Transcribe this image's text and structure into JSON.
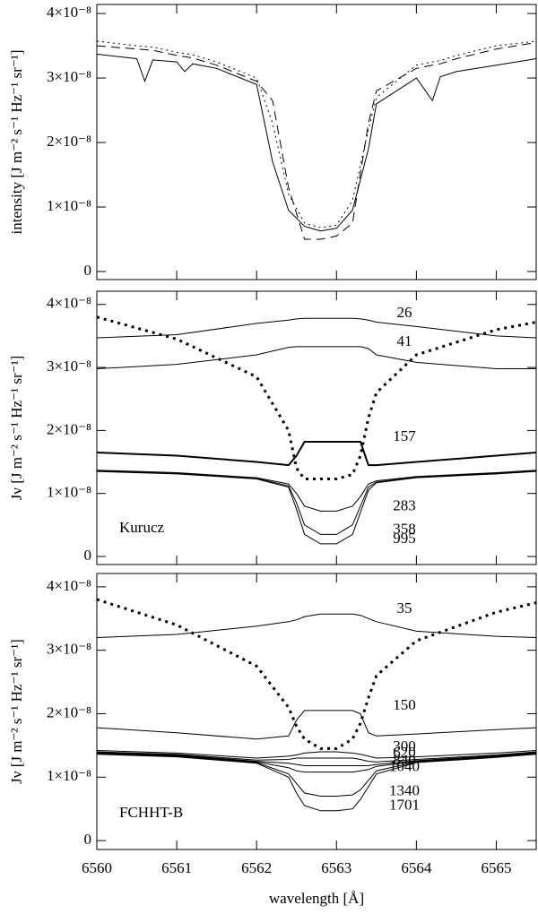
{
  "chart_data": [
    {
      "type": "line",
      "ylabel": "intensity  [J m⁻² s⁻¹ Hz⁻¹ sr⁻¹]",
      "x": [
        6560,
        6560.5,
        6560.6,
        6560.7,
        6561,
        6561.1,
        6561.2,
        6561.5,
        6562,
        6562.2,
        6562.4,
        6562.6,
        6562.8,
        6563,
        6563.2,
        6563.4,
        6563.5,
        6564,
        6564.2,
        6564.3,
        6564.5,
        6565,
        6565.5
      ],
      "xlim": [
        6560,
        6565.5
      ],
      "xticks": [
        6560,
        6561,
        6562,
        6563,
        6564,
        6565
      ],
      "ylim": [
        -1.25e-09,
        4.14e-08
      ],
      "yticks": [
        0,
        {
          "value": 1e-08,
          "label": "1×10⁻⁸"
        },
        {
          "value": 2e-08,
          "label": "2×10⁻⁸"
        },
        {
          "value": 3e-08,
          "label": "3×10⁻⁸"
        },
        {
          "value": 4e-08,
          "label": "4×10⁻⁸"
        }
      ],
      "series": [
        {
          "color": "#000000",
          "dash": "solid",
          "values": [
            3.37e-08,
            3.3e-08,
            2.95e-08,
            3.28e-08,
            3.25e-08,
            3.1e-08,
            3.22e-08,
            3.15e-08,
            2.9e-08,
            1.7e-08,
            9.5e-09,
            7e-09,
            6.3e-09,
            6.7e-09,
            9.5e-09,
            1.9e-08,
            2.6e-08,
            3e-08,
            2.65e-08,
            3.02e-08,
            3.1e-08,
            3.2e-08,
            3.3e-08
          ]
        },
        {
          "color": "#000000",
          "dash": "dashed",
          "values": [
            3.5e-08,
            3.45e-08,
            3.44e-08,
            3.43e-08,
            3.35e-08,
            3.33e-08,
            3.31e-08,
            3.2e-08,
            2.95e-08,
            2.65e-08,
            1.3e-08,
            5e-09,
            5e-09,
            5.5e-09,
            7.5e-09,
            2.3e-08,
            2.8e-08,
            3.15e-08,
            3.2e-08,
            3.22e-08,
            3.3e-08,
            3.45e-08,
            3.55e-08
          ]
        },
        {
          "color": "#000000",
          "dash": "dotted",
          "values": [
            3.57e-08,
            3.5e-08,
            3.49e-08,
            3.48e-08,
            3.4e-08,
            3.38e-08,
            3.36e-08,
            3.25e-08,
            3e-08,
            2.3e-08,
            1.2e-08,
            7.5e-09,
            6.8e-09,
            7.2e-09,
            1.1e-08,
            2.2e-08,
            2.7e-08,
            3.2e-08,
            3.25e-08,
            3.27e-08,
            3.35e-08,
            3.5e-08,
            3.57e-08
          ]
        }
      ]
    },
    {
      "type": "line",
      "ylabel": "Jν  [J m⁻² s⁻¹ Hz⁻¹ sr⁻¹]",
      "annotation": "Kurucz",
      "x": [
        6560,
        6561,
        6562,
        6562.4,
        6562.5,
        6562.6,
        6562.8,
        6563,
        6563.2,
        6563.3,
        6563.4,
        6563.5,
        6564,
        6565,
        6565.5
      ],
      "xlim": [
        6560,
        6565.5
      ],
      "xticks": [
        6560,
        6561,
        6562,
        6563,
        6564,
        6565
      ],
      "ylim": [
        -1.28e-09,
        4.21e-08
      ],
      "yticks": [
        0,
        {
          "value": 1e-08,
          "label": "1×10⁻⁸"
        },
        {
          "value": 2e-08,
          "label": "2×10⁻⁸"
        },
        {
          "value": 3e-08,
          "label": "3×10⁻⁸"
        },
        {
          "value": 4e-08,
          "label": "4×10⁻⁸"
        }
      ],
      "series": [
        {
          "color": "#000000",
          "dash": "dotted",
          "linewidth": 3,
          "values": [
            3.8e-08,
            3.45e-08,
            2.85e-08,
            2e-08,
            1.4e-08,
            1.23e-08,
            1.23e-08,
            1.23e-08,
            1.3e-08,
            1.6e-08,
            2.2e-08,
            2.6e-08,
            3.2e-08,
            3.6e-08,
            3.72e-08
          ]
        },
        {
          "name": "26",
          "color": "#000000",
          "dash": "solid",
          "values": [
            3.47e-08,
            3.52e-08,
            3.7e-08,
            3.75e-08,
            3.77e-08,
            3.78e-08,
            3.78e-08,
            3.78e-08,
            3.78e-08,
            3.77e-08,
            3.75e-08,
            3.72e-08,
            3.65e-08,
            3.5e-08,
            3.47e-08
          ]
        },
        {
          "name": "41",
          "color": "#000000",
          "dash": "solid",
          "values": [
            2.98e-08,
            3.05e-08,
            3.2e-08,
            3.32e-08,
            3.33e-08,
            3.33e-08,
            3.33e-08,
            3.33e-08,
            3.33e-08,
            3.33e-08,
            3.3e-08,
            3.2e-08,
            3.08e-08,
            2.98e-08,
            2.98e-08
          ]
        },
        {
          "name": "157",
          "color": "#000000",
          "dash": "solid",
          "linewidth": 2,
          "values": [
            1.65e-08,
            1.6e-08,
            1.5e-08,
            1.45e-08,
            1.6e-08,
            1.82e-08,
            1.82e-08,
            1.82e-08,
            1.82e-08,
            1.82e-08,
            1.45e-08,
            1.45e-08,
            1.5e-08,
            1.6e-08,
            1.65e-08
          ]
        },
        {
          "name": "283",
          "color": "#000000",
          "dash": "solid",
          "values": [
            1.37e-08,
            1.33e-08,
            1.25e-08,
            1.15e-08,
            1e-08,
            8e-09,
            7.2e-09,
            7.2e-09,
            8e-09,
            9.5e-09,
            1.15e-08,
            1.2e-08,
            1.27e-08,
            1.33e-08,
            1.37e-08
          ]
        },
        {
          "name": "358",
          "color": "#000000",
          "dash": "solid",
          "values": [
            1.36e-08,
            1.32e-08,
            1.24e-08,
            1.12e-08,
            8.5e-09,
            5e-09,
            3.5e-09,
            3.5e-09,
            5e-09,
            8e-09,
            1.1e-08,
            1.18e-08,
            1.26e-08,
            1.32e-08,
            1.36e-08
          ]
        },
        {
          "name": "995",
          "color": "#000000",
          "dash": "solid",
          "values": [
            1.35e-08,
            1.31e-08,
            1.23e-08,
            1.1e-08,
            7.5e-09,
            3.5e-09,
            2e-09,
            2e-09,
            3.5e-09,
            7e-09,
            1.05e-08,
            1.17e-08,
            1.25e-08,
            1.31e-08,
            1.35e-08
          ]
        }
      ]
    },
    {
      "type": "line",
      "ylabel": "Jν  [J m⁻² s⁻¹ Hz⁻¹ sr⁻¹]",
      "annotation": "FCHHT-B",
      "xlabel": "wavelength [Å]",
      "x": [
        6560,
        6561,
        6562,
        6562.4,
        6562.5,
        6562.6,
        6562.8,
        6563,
        6563.2,
        6563.3,
        6563.4,
        6563.5,
        6564,
        6565,
        6565.5
      ],
      "xlim": [
        6560,
        6565.5
      ],
      "xticks": [
        6560,
        6561,
        6562,
        6563,
        6564,
        6565
      ],
      "ylim": [
        -1.4e-09,
        4.21e-08
      ],
      "yticks": [
        0,
        {
          "value": 1e-08,
          "label": "1×10⁻⁸"
        },
        {
          "value": 2e-08,
          "label": "2×10⁻⁸"
        },
        {
          "value": 3e-08,
          "label": "3×10⁻⁸"
        },
        {
          "value": 4e-08,
          "label": "4×10⁻⁸"
        }
      ],
      "series": [
        {
          "color": "#000000",
          "dash": "dotted",
          "linewidth": 3,
          "values": [
            3.8e-08,
            3.4e-08,
            2.75e-08,
            2.1e-08,
            1.8e-08,
            1.6e-08,
            1.45e-08,
            1.45e-08,
            1.6e-08,
            1.85e-08,
            2.25e-08,
            2.6e-08,
            3.15e-08,
            3.6e-08,
            3.75e-08
          ]
        },
        {
          "name": "35",
          "color": "#000000",
          "dash": "solid",
          "values": [
            3.2e-08,
            3.25e-08,
            3.38e-08,
            3.45e-08,
            3.48e-08,
            3.53e-08,
            3.57e-08,
            3.57e-08,
            3.57e-08,
            3.55e-08,
            3.5e-08,
            3.45e-08,
            3.3e-08,
            3.22e-08,
            3.2e-08
          ]
        },
        {
          "name": "150",
          "color": "#000000",
          "dash": "solid",
          "values": [
            1.78e-08,
            1.7e-08,
            1.6e-08,
            1.65e-08,
            1.9e-08,
            2.05e-08,
            2.05e-08,
            2.05e-08,
            2.05e-08,
            2e-08,
            1.7e-08,
            1.65e-08,
            1.68e-08,
            1.75e-08,
            1.78e-08
          ]
        },
        {
          "name": "300",
          "color": "#000000",
          "dash": "solid",
          "values": [
            1.42e-08,
            1.38e-08,
            1.3e-08,
            1.33e-08,
            1.35e-08,
            1.38e-08,
            1.4e-08,
            1.4e-08,
            1.38e-08,
            1.36e-08,
            1.33e-08,
            1.3e-08,
            1.32e-08,
            1.38e-08,
            1.42e-08
          ]
        },
        {
          "name": "620",
          "color": "#000000",
          "dash": "solid",
          "values": [
            1.4e-08,
            1.36e-08,
            1.27e-08,
            1.28e-08,
            1.3e-08,
            1.3e-08,
            1.3e-08,
            1.3e-08,
            1.3e-08,
            1.28e-08,
            1.25e-08,
            1.24e-08,
            1.28e-08,
            1.35e-08,
            1.4e-08
          ]
        },
        {
          "name": "840",
          "color": "#000000",
          "dash": "solid",
          "values": [
            1.39e-08,
            1.35e-08,
            1.25e-08,
            1.22e-08,
            1.2e-08,
            1.18e-08,
            1.18e-08,
            1.18e-08,
            1.18e-08,
            1.18e-08,
            1.18e-08,
            1.2e-08,
            1.26e-08,
            1.34e-08,
            1.39e-08
          ]
        },
        {
          "name": "1040",
          "color": "#000000",
          "dash": "solid",
          "values": [
            1.38e-08,
            1.34e-08,
            1.24e-08,
            1.15e-08,
            1.1e-08,
            1.08e-08,
            1.08e-08,
            1.08e-08,
            1.08e-08,
            1.1e-08,
            1.12e-08,
            1.17e-08,
            1.25e-08,
            1.33e-08,
            1.38e-08
          ]
        },
        {
          "name": "1340",
          "color": "#000000",
          "dash": "solid",
          "values": [
            1.37e-08,
            1.33e-08,
            1.23e-08,
            1.05e-08,
            9e-09,
            7.5e-09,
            7e-09,
            7e-09,
            7.2e-09,
            8e-09,
            9.5e-09,
            1.1e-08,
            1.24e-08,
            1.32e-08,
            1.37e-08
          ]
        },
        {
          "name": "1701",
          "color": "#000000",
          "dash": "solid",
          "values": [
            1.36e-08,
            1.32e-08,
            1.22e-08,
            1e-08,
            7.5e-09,
            5.5e-09,
            4.7e-09,
            4.7e-09,
            5e-09,
            6.5e-09,
            8.5e-09,
            1.05e-08,
            1.23e-08,
            1.31e-08,
            1.36e-08
          ]
        }
      ]
    }
  ]
}
